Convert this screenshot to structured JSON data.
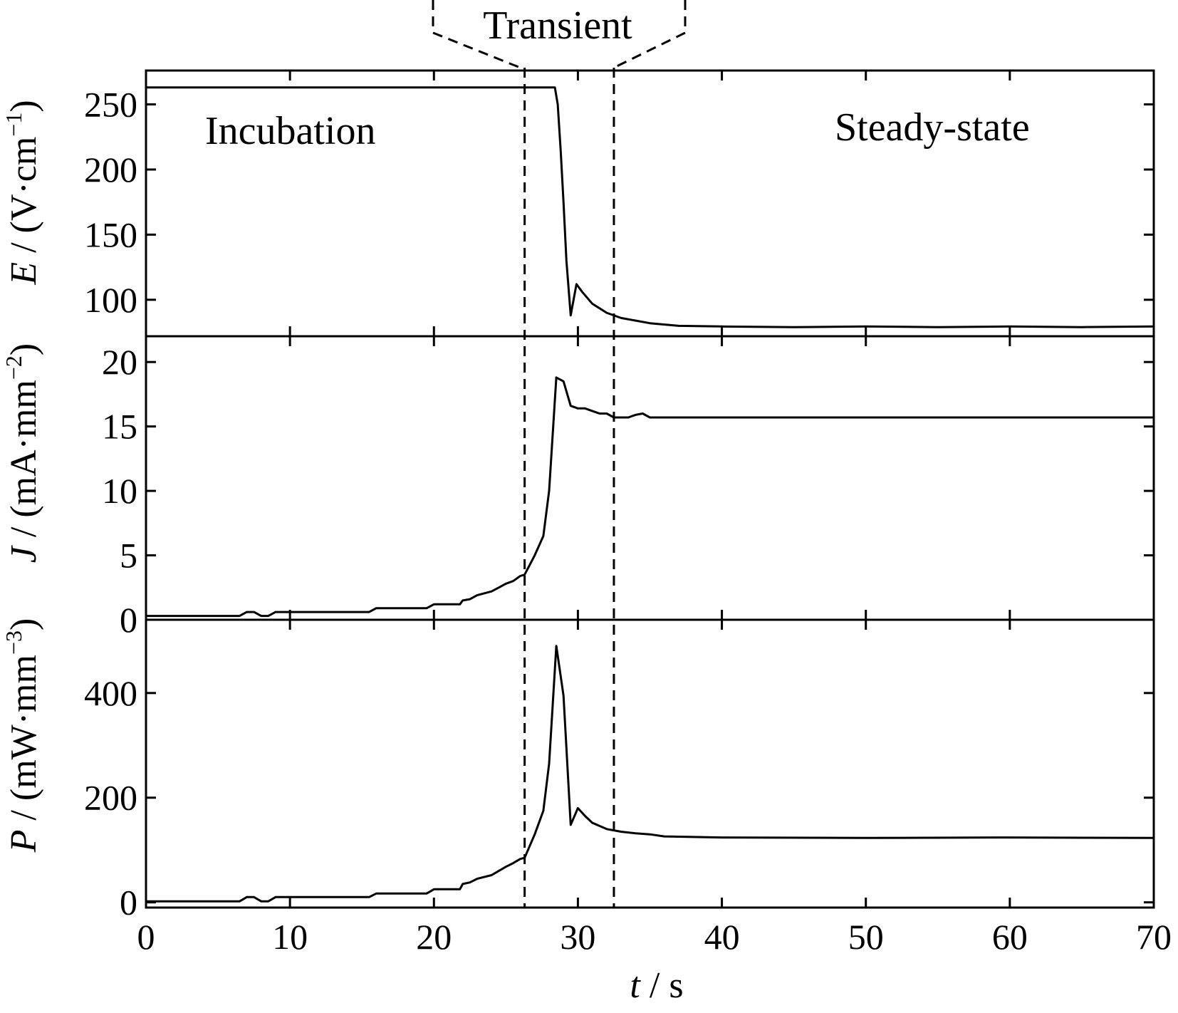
{
  "chart_data": {
    "type": "line",
    "xlabel": {
      "symbol": "t",
      "unit": " / s"
    },
    "xlim": [
      0,
      70
    ],
    "xticks": [
      0,
      10,
      20,
      30,
      40,
      50,
      60,
      70
    ],
    "annotations": {
      "transient": "Transient",
      "incubation": "Incubation",
      "steady_state": "Steady-state"
    },
    "phase_boundaries": [
      26.3,
      32.5
    ],
    "panels": [
      {
        "id": "E",
        "ylabel": {
          "symbol": "E",
          "unit": " / (V·cm",
          "exp": "−1",
          "close": ")"
        },
        "ylim": [
          72,
          276
        ],
        "yticks": [
          100,
          150,
          200,
          250
        ],
        "series": {
          "x": [
            0,
            28.4,
            28.6,
            28.8,
            29.0,
            29.2,
            29.5,
            29.9,
            30.3,
            31,
            32,
            33,
            35,
            37,
            40,
            45,
            50,
            55,
            60,
            65,
            70
          ],
          "y": [
            263,
            263,
            250,
            215,
            175,
            130,
            88,
            112,
            106,
            97,
            90,
            86,
            82,
            80,
            79.5,
            79,
            79.5,
            79,
            79.5,
            79,
            79.5
          ]
        }
      },
      {
        "id": "J",
        "ylabel": {
          "symbol": "J",
          "unit": " / (mA·mm",
          "exp": "−2",
          "close": ")"
        },
        "ylim": [
          0,
          22
        ],
        "yticks": [
          0,
          5,
          10,
          15,
          20
        ],
        "series": {
          "x": [
            0,
            6.5,
            7,
            7.5,
            8,
            8.5,
            9,
            15.5,
            16,
            19.5,
            20,
            21.8,
            22,
            22.5,
            23,
            24,
            24.5,
            25,
            25.5,
            26,
            26.3,
            27,
            27.6,
            28.0,
            28.5,
            29,
            29.5,
            30,
            30.5,
            31,
            31.5,
            32,
            32.5,
            33.5,
            34,
            34.5,
            35,
            36,
            40,
            50,
            60,
            70
          ],
          "y": [
            0.3,
            0.3,
            0.6,
            0.6,
            0.3,
            0.3,
            0.6,
            0.6,
            0.9,
            0.9,
            1.2,
            1.2,
            1.5,
            1.6,
            1.9,
            2.2,
            2.5,
            2.8,
            3.0,
            3.4,
            3.5,
            5.0,
            6.5,
            10,
            18.8,
            18.5,
            16.6,
            16.4,
            16.4,
            16.2,
            16.0,
            16.0,
            15.7,
            15.7,
            15.9,
            16.0,
            15.7,
            15.7,
            15.7,
            15.7,
            15.7,
            15.7
          ]
        }
      },
      {
        "id": "P",
        "ylabel": {
          "symbol": "P",
          "unit": " / (mW·mm",
          "exp": "−3",
          "close": ")"
        },
        "ylim": [
          -10,
          540
        ],
        "yticks": [
          0,
          200,
          400
        ],
        "series": {
          "x": [
            0,
            6.5,
            7,
            7.5,
            8,
            8.5,
            9,
            15.5,
            16,
            19.5,
            20,
            21.8,
            22,
            22.5,
            23,
            24,
            24.5,
            25,
            25.5,
            26,
            26.3,
            27,
            27.6,
            28.0,
            28.5,
            29,
            29.5,
            30,
            30.5,
            31,
            32,
            33,
            34,
            35,
            36,
            40,
            50,
            60,
            70
          ],
          "y": [
            2,
            2,
            10,
            10,
            2,
            2,
            10,
            10,
            17,
            17,
            25,
            25,
            35,
            38,
            45,
            52,
            60,
            68,
            75,
            83,
            85,
            130,
            175,
            265,
            490,
            395,
            148,
            180,
            165,
            152,
            140,
            135,
            132,
            130,
            126,
            124,
            123,
            124,
            123
          ]
        }
      }
    ]
  }
}
